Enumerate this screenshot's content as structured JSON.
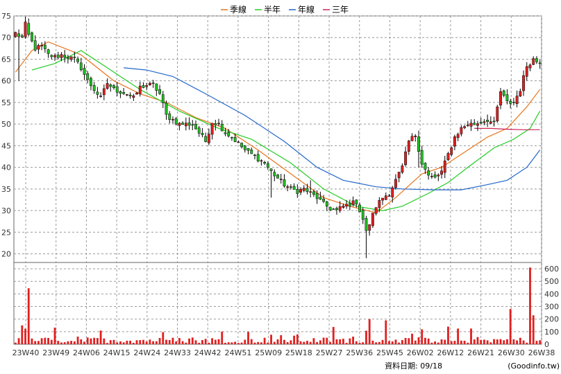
{
  "chart_data": {
    "type": "candlestick",
    "legend": [
      {
        "name": "季線",
        "color": "#e8731a"
      },
      {
        "name": "半年",
        "color": "#22cc22"
      },
      {
        "name": "年線",
        "color": "#2266cc"
      },
      {
        "name": "三年",
        "color": "#cc2255"
      }
    ],
    "price_axis": {
      "ticks": [
        20,
        25,
        30,
        35,
        40,
        45,
        50,
        55,
        60,
        65,
        70,
        75
      ],
      "ylim": [
        18,
        75
      ]
    },
    "volume_axis": {
      "ticks": [
        0,
        100,
        200,
        300,
        400,
        500,
        600
      ],
      "ylim": [
        0,
        650
      ]
    },
    "x_tick_labels": [
      "23W40",
      "23W49",
      "24W06",
      "24W15",
      "24W24",
      "24W33",
      "24W42",
      "24W51",
      "25W09",
      "25W18",
      "25W27",
      "25W36",
      "25W45",
      "26W02",
      "26W12",
      "26W21",
      "26W30",
      "26W38"
    ],
    "colors": {
      "up": "#e02020",
      "down": "#20c020",
      "wick": "#000000",
      "volume": "#e02020",
      "grid": "#999999"
    },
    "anchors": [
      [
        0,
        71.0
      ],
      [
        2,
        70.0
      ],
      [
        3,
        73.0
      ],
      [
        4,
        70.5
      ],
      [
        6,
        67.5
      ],
      [
        8,
        68.0
      ],
      [
        10,
        66.0
      ],
      [
        12,
        65.5
      ],
      [
        14,
        66.0
      ],
      [
        16,
        65.5
      ],
      [
        18,
        65.0
      ],
      [
        20,
        63.0
      ],
      [
        22,
        60.0
      ],
      [
        24,
        58.0
      ],
      [
        26,
        56.0
      ],
      [
        28,
        59.5
      ],
      [
        30,
        58.0
      ],
      [
        32,
        57.5
      ],
      [
        34,
        57.0
      ],
      [
        36,
        56.0
      ],
      [
        38,
        58.5
      ],
      [
        40,
        59.0
      ],
      [
        42,
        59.0
      ],
      [
        44,
        57.0
      ],
      [
        46,
        52.0
      ],
      [
        48,
        51.0
      ],
      [
        50,
        50.0
      ],
      [
        52,
        50.0
      ],
      [
        54,
        50.0
      ],
      [
        56,
        48.0
      ],
      [
        58,
        46.0
      ],
      [
        60,
        50.5
      ],
      [
        62,
        50.0
      ],
      [
        64,
        48.0
      ],
      [
        66,
        47.0
      ],
      [
        68,
        45.5
      ],
      [
        70,
        44.0
      ],
      [
        72,
        43.0
      ],
      [
        74,
        42.0
      ],
      [
        76,
        41.0
      ],
      [
        78,
        39.0
      ],
      [
        80,
        37.5
      ],
      [
        82,
        36.0
      ],
      [
        84,
        35.0
      ],
      [
        86,
        34.5
      ],
      [
        88,
        35.0
      ],
      [
        90,
        34.0
      ],
      [
        92,
        33.0
      ],
      [
        94,
        31.5
      ],
      [
        96,
        30.5
      ],
      [
        98,
        30.0
      ],
      [
        100,
        31.0
      ],
      [
        102,
        31.5
      ],
      [
        104,
        32.0
      ],
      [
        106,
        28.0
      ],
      [
        107,
        25.0
      ],
      [
        108,
        27.0
      ],
      [
        110,
        31.0
      ],
      [
        112,
        33.0
      ],
      [
        114,
        34.0
      ],
      [
        116,
        37.0
      ],
      [
        118,
        40.0
      ],
      [
        120,
        46.0
      ],
      [
        122,
        47.5
      ],
      [
        124,
        41.0
      ],
      [
        126,
        38.0
      ],
      [
        128,
        37.5
      ],
      [
        130,
        39.0
      ],
      [
        132,
        43.0
      ],
      [
        134,
        47.0
      ],
      [
        136,
        49.0
      ],
      [
        138,
        50.0
      ],
      [
        140,
        50.0
      ],
      [
        142,
        50.5
      ],
      [
        144,
        51.0
      ],
      [
        146,
        50.0
      ],
      [
        148,
        57.5
      ],
      [
        150,
        55.0
      ],
      [
        152,
        55.0
      ],
      [
        154,
        58.0
      ],
      [
        156,
        63.5
      ],
      [
        158,
        65.0
      ],
      [
        159,
        64.5
      ]
    ],
    "spikes": [
      {
        "i": 107,
        "low": 19.0
      },
      {
        "i": 90,
        "high": 37.0
      },
      {
        "i": 78,
        "low": 33.0
      },
      {
        "i": 123,
        "high": 48.5,
        "low": 40.0
      },
      {
        "i": 1,
        "low": 60.0
      }
    ],
    "moving_averages": [
      {
        "name": "季線",
        "points": [
          [
            0,
            62.0
          ],
          [
            5,
            67.0
          ],
          [
            10,
            69.0
          ],
          [
            20,
            66.0
          ],
          [
            30,
            60.0
          ],
          [
            38,
            57.0
          ],
          [
            46,
            55.0
          ],
          [
            55,
            51.5
          ],
          [
            64,
            49.0
          ],
          [
            74,
            44.0
          ],
          [
            84,
            38.5
          ],
          [
            94,
            33.0
          ],
          [
            102,
            31.0
          ],
          [
            110,
            29.5
          ],
          [
            116,
            33.0
          ],
          [
            124,
            38.5
          ],
          [
            130,
            40.0
          ],
          [
            136,
            43.0
          ],
          [
            144,
            47.0
          ],
          [
            150,
            49.0
          ],
          [
            156,
            54.0
          ],
          [
            160,
            58.0
          ]
        ]
      },
      {
        "name": "半年",
        "points": [
          [
            5,
            62.5
          ],
          [
            12,
            64.0
          ],
          [
            20,
            67.0
          ],
          [
            28,
            63.0
          ],
          [
            38,
            58.0
          ],
          [
            50,
            53.0
          ],
          [
            62,
            49.0
          ],
          [
            72,
            46.5
          ],
          [
            84,
            41.0
          ],
          [
            94,
            35.0
          ],
          [
            104,
            31.0
          ],
          [
            112,
            30.0
          ],
          [
            118,
            31.0
          ],
          [
            126,
            34.0
          ],
          [
            132,
            36.5
          ],
          [
            138,
            40.0
          ],
          [
            146,
            44.5
          ],
          [
            152,
            46.5
          ],
          [
            157,
            49.0
          ],
          [
            160,
            53.0
          ]
        ]
      },
      {
        "name": "年線",
        "points": [
          [
            33,
            63.0
          ],
          [
            40,
            62.5
          ],
          [
            48,
            61.0
          ],
          [
            58,
            57.0
          ],
          [
            70,
            52.0
          ],
          [
            82,
            46.0
          ],
          [
            92,
            40.0
          ],
          [
            100,
            37.0
          ],
          [
            110,
            35.5
          ],
          [
            118,
            35.0
          ],
          [
            128,
            34.8
          ],
          [
            136,
            34.8
          ],
          [
            144,
            36.0
          ],
          [
            150,
            37.0
          ],
          [
            156,
            40.0
          ],
          [
            160,
            44.0
          ]
        ]
      },
      {
        "name": "三年",
        "points": [
          [
            140,
            49.0
          ],
          [
            145,
            49.0
          ],
          [
            150,
            48.8
          ],
          [
            155,
            48.7
          ],
          [
            160,
            48.7
          ]
        ]
      }
    ],
    "volumes_visible_peaks": [
      {
        "i": 4,
        "v": 445
      },
      {
        "i": 2,
        "v": 150
      },
      {
        "i": 157,
        "v": 610
      },
      {
        "i": 151,
        "v": 280
      },
      {
        "i": 108,
        "v": 200
      },
      {
        "i": 113,
        "v": 190
      },
      {
        "i": 158,
        "v": 230
      }
    ]
  },
  "footer": {
    "date_label": "資料日期: 09/18",
    "source": "(Goodinfo.tw)"
  }
}
